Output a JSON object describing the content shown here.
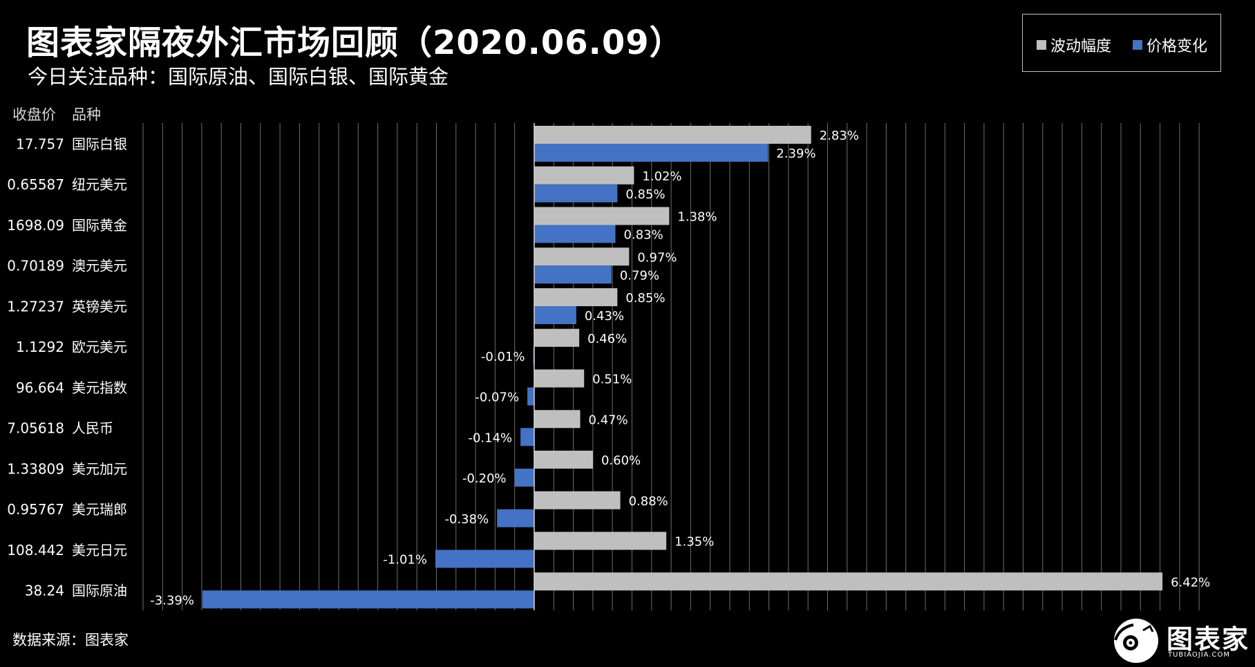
{
  "header": {
    "title": "图表家隔夜外汇市场回顾（2020.06.09）",
    "subtitle": "今日关注品种：国际原油、国际白银、国际黄金"
  },
  "columns": {
    "close_label": "收盘价",
    "name_label": "品种"
  },
  "footer": {
    "source": "数据来源：图表家"
  },
  "logo": {
    "text": "图表家",
    "sub": "TUBIAOJIA.COM"
  },
  "colors": {
    "background": "#000000",
    "volatility": "#bfbfbf",
    "price_change": "#4472c4",
    "grid": "#6e6e6e",
    "axis": "#d9d9d9"
  },
  "chart_data": {
    "type": "bar",
    "orientation": "horizontal",
    "categories": [
      "国际白银",
      "纽元美元",
      "国际黄金",
      "澳元美元",
      "英镑美元",
      "欧元美元",
      "美元指数",
      "人民币",
      "美元加元",
      "美元瑞郎",
      "美元日元",
      "国际原油"
    ],
    "closing_prices": [
      "17.757",
      "0.65587",
      "1698.09",
      "0.70189",
      "1.27237",
      "1.1292",
      "96.664",
      "7.05618",
      "1.33809",
      "0.95767",
      "108.442",
      "38.24"
    ],
    "series": [
      {
        "name": "波动幅度",
        "values": [
          2.83,
          1.02,
          1.38,
          0.97,
          0.85,
          0.46,
          0.51,
          0.47,
          0.6,
          0.88,
          1.35,
          6.42
        ],
        "labels": [
          "2.83%",
          "1.02%",
          "1.38%",
          "0.97%",
          "0.85%",
          "0.46%",
          "0.51%",
          "0.47%",
          "0.60%",
          "0.88%",
          "1.35%",
          "6.42%"
        ]
      },
      {
        "name": "价格变化",
        "values": [
          2.39,
          0.85,
          0.83,
          0.79,
          0.43,
          -0.01,
          -0.07,
          -0.14,
          -0.2,
          -0.38,
          -1.01,
          -3.39
        ],
        "labels": [
          "2.39%",
          "0.85%",
          "0.83%",
          "0.79%",
          "0.43%",
          "-0.01%",
          "-0.07%",
          "-0.14%",
          "-0.20%",
          "-0.38%",
          "-1.01%",
          "-3.39%"
        ]
      }
    ],
    "xlim": [
      -4,
      7
    ],
    "grid": true,
    "legend": "top-right"
  }
}
